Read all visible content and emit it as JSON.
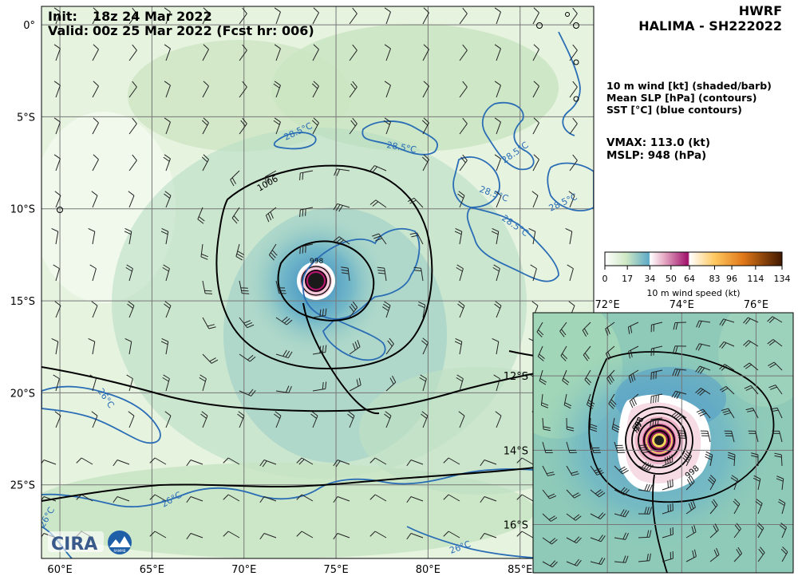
{
  "header": {
    "model": "HWRF",
    "storm": "HALIMA - SH222022",
    "init_label": "Init:",
    "init_value": "18z 24 Mar 2022",
    "valid_label": "Valid:",
    "valid_value": "00z 25 Mar 2022 (Fcst hr: 006)"
  },
  "legend": {
    "line1": "10 m wind [kt] (shaded/barb)",
    "line2": "Mean SLP [hPa] (contours)",
    "line3": "SST [°C] (blue contours)"
  },
  "stats": {
    "vmax": "VMAX: 113.0 (kt)",
    "mslp": "MSLP:  948 (hPa)"
  },
  "colorbar": {
    "title": "10 m wind speed (kt)",
    "ticks": [
      "0",
      "17",
      "34",
      "50",
      "64",
      "83",
      "96",
      "114",
      "134"
    ],
    "tick_values": [
      0,
      17,
      34,
      50,
      64,
      83,
      96,
      114,
      134
    ],
    "range": [
      0,
      134
    ],
    "colors": [
      "#ffffff",
      "#d6ecd0",
      "#74b9c6",
      "#ffffff",
      "#e8b4c8",
      "#b0106e",
      "#ffffff",
      "#ffd070",
      "#e08020",
      "#7a2a00",
      "#3a1a00"
    ]
  },
  "main_map": {
    "lon_labels": [
      "60°E",
      "65°E",
      "70°E",
      "75°E",
      "80°E",
      "85°E"
    ],
    "lon_values": [
      60,
      65,
      70,
      75,
      80,
      85
    ],
    "lat_labels": [
      "0°",
      "5°S",
      "10°S",
      "15°S",
      "20°S",
      "25°S"
    ],
    "lat_values": [
      0,
      -5,
      -10,
      -15,
      -20,
      -25
    ],
    "lon_range": [
      59,
      89
    ],
    "lat_range": [
      -29,
      1
    ],
    "center": {
      "lon": 73.8,
      "lat": -13.8
    },
    "slp_labels": [
      "1006",
      "998"
    ],
    "sst_labels": [
      "28.5°C",
      "28.5°C",
      "28.5°C",
      "28.5°C",
      "28.5°C",
      "28.5°C",
      "26°C",
      "26°C",
      "26°C",
      "26°C"
    ]
  },
  "inset_map": {
    "lon_labels": [
      "72°E",
      "74°E",
      "76°E"
    ],
    "lon_values": [
      72,
      74,
      76
    ],
    "lat_labels": [
      "12°S",
      "14°S",
      "16°S"
    ],
    "lat_values": [
      -12,
      -14,
      -16
    ],
    "lon_range": [
      70.0,
      77.0
    ],
    "lat_range": [
      -17.3,
      -10.3
    ],
    "slp_labels": [
      "998",
      "998"
    ]
  },
  "logos": {
    "cira": "CIRA",
    "ramamb": "RAMMB"
  },
  "style": {
    "ocean_light": "#eef7e8",
    "wind_green": "#cfe8c4",
    "wind_teal": "#7fc3c7",
    "wind_blue": "#4aa0c8",
    "sst_blue": "#2a6db5",
    "slp_black": "#000000",
    "grid": "#777777"
  }
}
